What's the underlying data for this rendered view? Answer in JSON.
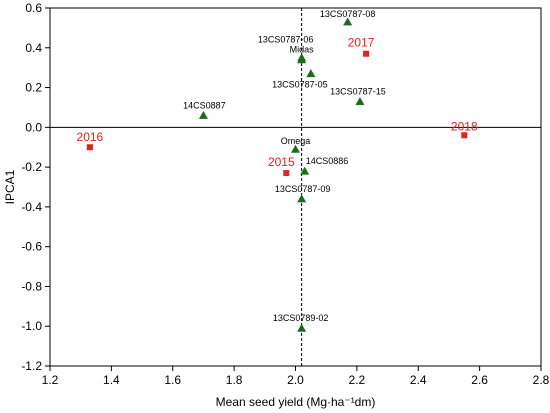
{
  "chart_data": {
    "type": "scatter",
    "xlabel": "Mean seed yield (Mg·ha⁻¹dm)",
    "ylabel": "IPCA1",
    "xlim": [
      1.2,
      2.8
    ],
    "ylim": [
      -1.2,
      0.6
    ],
    "x_ticks": [
      1.2,
      1.4,
      1.6,
      1.8,
      2.0,
      2.2,
      2.4,
      2.6,
      2.8
    ],
    "x_tick_labels": [
      "1.2",
      "1.4",
      "1.6",
      "1.8",
      "2.0",
      "2.2",
      "2.4",
      "2.6",
      "2.8"
    ],
    "y_ticks": [
      0.6,
      0.4,
      0.2,
      0.0,
      -0.2,
      -0.4,
      -0.6,
      -0.8,
      -1.0,
      -1.2
    ],
    "y_tick_labels": [
      "0.6",
      "0.4",
      "0.2",
      "0.0",
      "-0.2",
      "-0.4",
      "-0.6",
      "-0.8",
      "-1.0",
      "-1.2"
    ],
    "reference_lines": {
      "vertical_x": 2.02,
      "horizontal_y": 0.0
    },
    "grid": false,
    "series": [
      {
        "marker": "triangle",
        "color": "#1a6e1a",
        "points": [
          {
            "label": "13CS0787-08",
            "x": 2.17,
            "y": 0.53
          },
          {
            "label": "13CS0787-06",
            "x": 2.02,
            "y": 0.34
          },
          {
            "label": "Midas",
            "x": 2.02,
            "y": 0.35
          },
          {
            "label": "13CS0787-05",
            "x": 2.05,
            "y": 0.27
          },
          {
            "label": "13CS0787-15",
            "x": 2.21,
            "y": 0.13
          },
          {
            "label": "14CS0887",
            "x": 1.7,
            "y": 0.06
          },
          {
            "label": "Omega",
            "x": 2.0,
            "y": -0.11
          },
          {
            "label": "14CS0886",
            "x": 2.03,
            "y": -0.22
          },
          {
            "label": "13CS0787-09",
            "x": 2.02,
            "y": -0.36
          },
          {
            "label": "13CS0789-02",
            "x": 2.02,
            "y": -1.01
          }
        ]
      },
      {
        "marker": "square",
        "color": "#e8201a",
        "points": [
          {
            "label": "2017",
            "x": 2.23,
            "y": 0.37
          },
          {
            "label": "2016",
            "x": 1.33,
            "y": -0.1
          },
          {
            "label": "2018",
            "x": 2.55,
            "y": -0.04
          },
          {
            "label": "2015",
            "x": 1.97,
            "y": -0.23
          }
        ]
      }
    ]
  }
}
